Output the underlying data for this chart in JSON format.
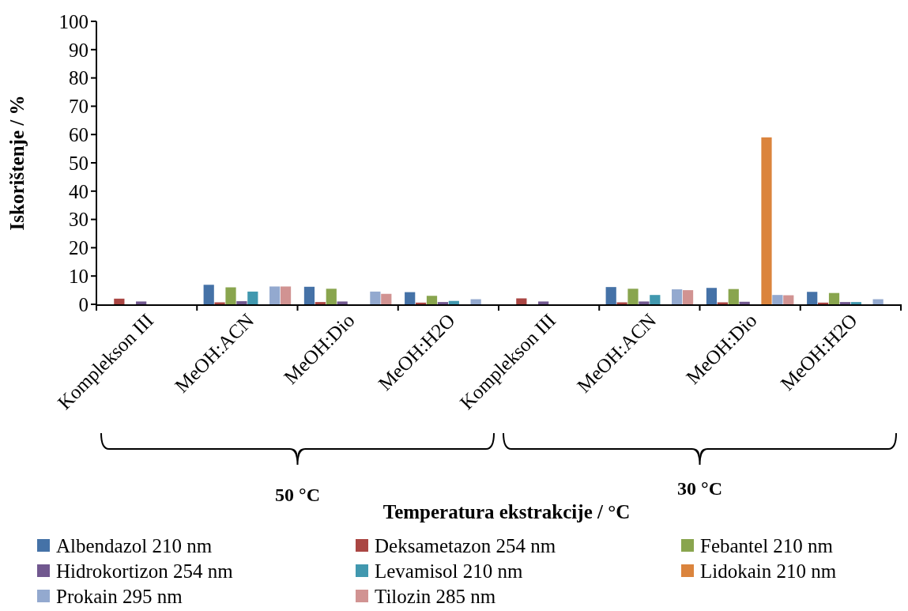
{
  "chart_data": {
    "type": "bar",
    "ylabel": "Iskorištenje / %",
    "xlabel": "Temperatura ekstrakcije / °C",
    "categories": [
      "Komplekson III",
      "MeOH:ACN",
      "MeOH:Dio",
      "MeOH:H2O",
      "Komplekson III",
      "MeOH:ACN",
      "MeOH:Dio",
      "MeOH:H2O"
    ],
    "series": [
      {
        "name": "Albendazol 210 nm",
        "color": "#4572a7",
        "values": [
          null,
          6.9,
          6.2,
          4.3,
          null,
          6.1,
          5.8,
          4.4
        ]
      },
      {
        "name": "Deksametazon 254 nm",
        "color": "#aa4643",
        "values": [
          2.0,
          0.7,
          0.8,
          0.6,
          2.1,
          0.7,
          0.7,
          0.6
        ]
      },
      {
        "name": "Febantel 210 nm",
        "color": "#89a54e",
        "values": [
          null,
          6.0,
          5.5,
          3.0,
          null,
          5.5,
          5.4,
          4.0
        ]
      },
      {
        "name": "Hidrokortizon 254 nm",
        "color": "#71588f",
        "values": [
          1.0,
          1.1,
          1.0,
          0.8,
          1.0,
          1.0,
          0.9,
          0.8
        ]
      },
      {
        "name": "Levamisol 210 nm",
        "color": "#4198af",
        "values": [
          null,
          4.5,
          null,
          1.2,
          null,
          3.3,
          null,
          0.8
        ]
      },
      {
        "name": "Lidokain 210 nm",
        "color": "#db843d",
        "values": [
          null,
          null,
          null,
          null,
          null,
          null,
          59,
          null
        ]
      },
      {
        "name": "Prokain 295 nm",
        "color": "#93a9cf",
        "values": [
          null,
          6.3,
          4.5,
          1.8,
          null,
          5.3,
          3.3,
          1.8
        ]
      },
      {
        "name": "Tilozin 285 nm",
        "color": "#d19392",
        "values": [
          null,
          6.3,
          3.7,
          null,
          null,
          5.0,
          3.2,
          null
        ]
      }
    ],
    "ylim": [
      0,
      100
    ],
    "yticks": [
      0,
      10,
      20,
      30,
      40,
      50,
      60,
      70,
      80,
      90,
      100
    ],
    "grid": false,
    "legend": "bottom",
    "annotations": [
      "50 °C",
      "30 °C"
    ]
  }
}
